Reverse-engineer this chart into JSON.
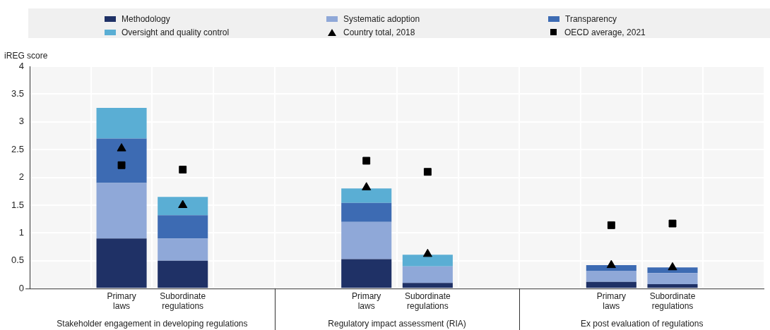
{
  "chart_data": {
    "type": "bar",
    "ylabel": "iREG score",
    "stacked": true,
    "grid": true,
    "legend": "top",
    "categories": [
      null,
      "Primary laws",
      "Subordinate regulations",
      null,
      null,
      "Primary laws",
      "Subordinate regulations",
      null,
      null,
      "Primary laws",
      "Subordinate regulations",
      null
    ],
    "series": [
      {
        "name": "Methodology",
        "color": "#1f3166",
        "values": [
          null,
          0.9,
          0.5,
          null,
          null,
          0.53,
          0.1,
          null,
          null,
          0.12,
          0.08,
          null
        ]
      },
      {
        "name": "Systematic adoption",
        "color": "#8fa8d8",
        "values": [
          null,
          1.0,
          0.4,
          null,
          null,
          0.67,
          0.3,
          null,
          null,
          0.2,
          0.2,
          null
        ]
      },
      {
        "name": "Transparency",
        "color": "#3d6bb3",
        "values": [
          null,
          0.8,
          0.42,
          null,
          null,
          0.34,
          0,
          null,
          null,
          0.1,
          0.1,
          null
        ]
      },
      {
        "name": "Oversight and quality control",
        "color": "#5aaed4",
        "values": [
          null,
          0.55,
          0.33,
          null,
          null,
          0.26,
          0.21,
          null,
          null,
          0,
          0,
          null
        ]
      },
      {
        "name": "Country total, 2018",
        "type": "scatter",
        "marker": "triangle",
        "color": "#000000",
        "values": [
          null,
          2.52,
          1.5,
          null,
          null,
          1.82,
          0.62,
          null,
          null,
          0.42,
          0.38,
          null
        ]
      },
      {
        "name": "OECD average, 2021",
        "type": "scatter",
        "marker": "square",
        "color": "#000000",
        "values": [
          null,
          2.22,
          2.14,
          null,
          null,
          2.3,
          2.1,
          null,
          null,
          1.14,
          1.17,
          null
        ]
      }
    ],
    "ylim": [
      0,
      4
    ],
    "yticks": [
      0,
      0.5,
      1,
      1.5,
      2,
      2.5,
      3,
      3.5,
      4
    ],
    "annotations": [
      "Stakeholder engagement in developing regulations",
      "Regulatory impact assessment (RIA)",
      "Ex post evaluation of regulations"
    ]
  }
}
